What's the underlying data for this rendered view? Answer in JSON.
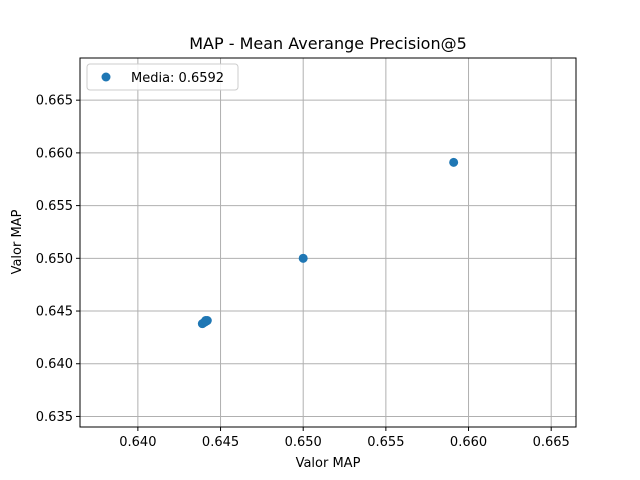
{
  "chart_data": {
    "type": "scatter",
    "title": "MAP - Mean Averange Precision@5",
    "xlabel": "Valor MAP",
    "ylabel": "Valor MAP",
    "xlim": [
      0.6365,
      0.6665
    ],
    "ylim": [
      0.634,
      0.669
    ],
    "xticks": [
      "0.640",
      "0.645",
      "0.650",
      "0.655",
      "0.660",
      "0.665"
    ],
    "yticks": [
      "0.635",
      "0.640",
      "0.645",
      "0.650",
      "0.655",
      "0.660",
      "0.665"
    ],
    "grid": true,
    "legend_position": "top-left",
    "series": [
      {
        "name": "Media: 0.6592",
        "color": "#1f77b4",
        "points": [
          {
            "x": 0.6439,
            "y": 0.6438
          },
          {
            "x": 0.644,
            "y": 0.6439
          },
          {
            "x": 0.6441,
            "y": 0.644
          },
          {
            "x": 0.6442,
            "y": 0.6441
          },
          {
            "x": 0.6441,
            "y": 0.6441
          },
          {
            "x": 0.65,
            "y": 0.65
          },
          {
            "x": 0.6591,
            "y": 0.6591
          }
        ]
      }
    ]
  }
}
